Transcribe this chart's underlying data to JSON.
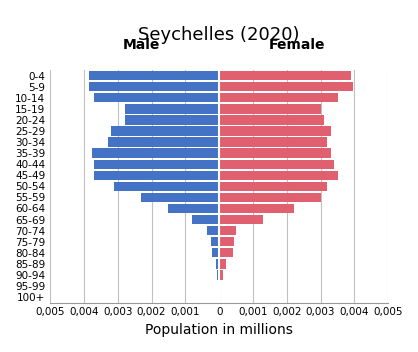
{
  "title": "Seychelles (2020)",
  "male_label": "Male",
  "female_label": "Female",
  "xlabel": "Population in millions",
  "age_groups": [
    "0-4",
    "5-9",
    "10-14",
    "15-19",
    "20-24",
    "25-29",
    "30-34",
    "35-39",
    "40-44",
    "45-49",
    "50-54",
    "55-59",
    "60-64",
    "65-69",
    "70-74",
    "75-79",
    "80-84",
    "85-89",
    "90-94",
    "95-99",
    "100+"
  ],
  "male_values": [
    0.00385,
    0.00385,
    0.0037,
    0.0028,
    0.0028,
    0.0032,
    0.0033,
    0.00375,
    0.0037,
    0.0037,
    0.0031,
    0.0023,
    0.0015,
    0.0008,
    0.00035,
    0.00025,
    0.0002,
    0.0001,
    5e-05,
    0.0,
    0.0
  ],
  "female_values": [
    0.0039,
    0.00395,
    0.0035,
    0.003,
    0.0031,
    0.0033,
    0.0032,
    0.0033,
    0.0034,
    0.0035,
    0.0032,
    0.003,
    0.0022,
    0.0013,
    0.0005,
    0.00045,
    0.0004,
    0.0002,
    0.00012,
    0.0,
    3e-05
  ],
  "male_color": "#4472C4",
  "female_color": "#E06070",
  "xlim": 0.005,
  "background_color": "#FFFFFF",
  "grid_color": "#C0C0C0",
  "title_fontsize": 13,
  "label_fontsize": 10,
  "tick_fontsize": 7.5
}
